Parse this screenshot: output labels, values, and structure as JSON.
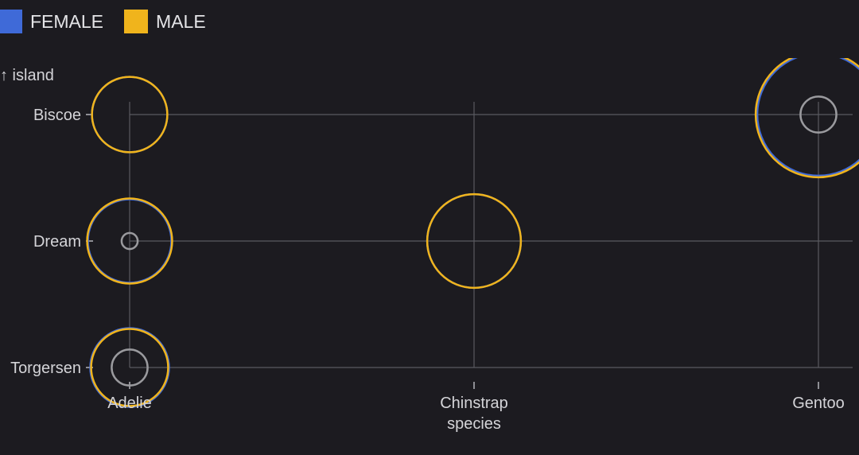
{
  "chart_data": {
    "type": "scatter",
    "title": "",
    "xlabel": "species",
    "ylabel": "↑ island",
    "x_categories": [
      "Adelie",
      "Chinstrap",
      "Gentoo"
    ],
    "y_categories": [
      "Biscoe",
      "Dream",
      "Torgersen"
    ],
    "legend": {
      "placement": "top-left",
      "items": [
        {
          "label": "FEMALE",
          "color": "#3f6ad8"
        },
        {
          "label": "MALE",
          "color": "#f0b41c"
        }
      ]
    },
    "grid": true,
    "series": [
      {
        "name": "FEMALE",
        "color": "#3f6ad8",
        "points": [
          {
            "x": "Adelie",
            "y": "Biscoe",
            "count": 22
          },
          {
            "x": "Adelie",
            "y": "Dream",
            "count": 27
          },
          {
            "x": "Adelie",
            "y": "Torgersen",
            "count": 24
          },
          {
            "x": "Chinstrap",
            "y": "Dream",
            "count": 34
          },
          {
            "x": "Gentoo",
            "y": "Biscoe",
            "count": 58
          }
        ]
      },
      {
        "name": "MALE",
        "color": "#f0b41c",
        "points": [
          {
            "x": "Adelie",
            "y": "Biscoe",
            "count": 22
          },
          {
            "x": "Adelie",
            "y": "Dream",
            "count": 28
          },
          {
            "x": "Adelie",
            "y": "Torgersen",
            "count": 23
          },
          {
            "x": "Chinstrap",
            "y": "Dream",
            "count": 34
          },
          {
            "x": "Gentoo",
            "y": "Biscoe",
            "count": 61
          }
        ]
      },
      {
        "name": "",
        "color": "#9a9a9e",
        "points": [
          {
            "x": "Adelie",
            "y": "Dream",
            "count": 1
          },
          {
            "x": "Adelie",
            "y": "Torgersen",
            "count": 5
          },
          {
            "x": "Gentoo",
            "y": "Biscoe",
            "count": 5
          }
        ]
      }
    ]
  }
}
